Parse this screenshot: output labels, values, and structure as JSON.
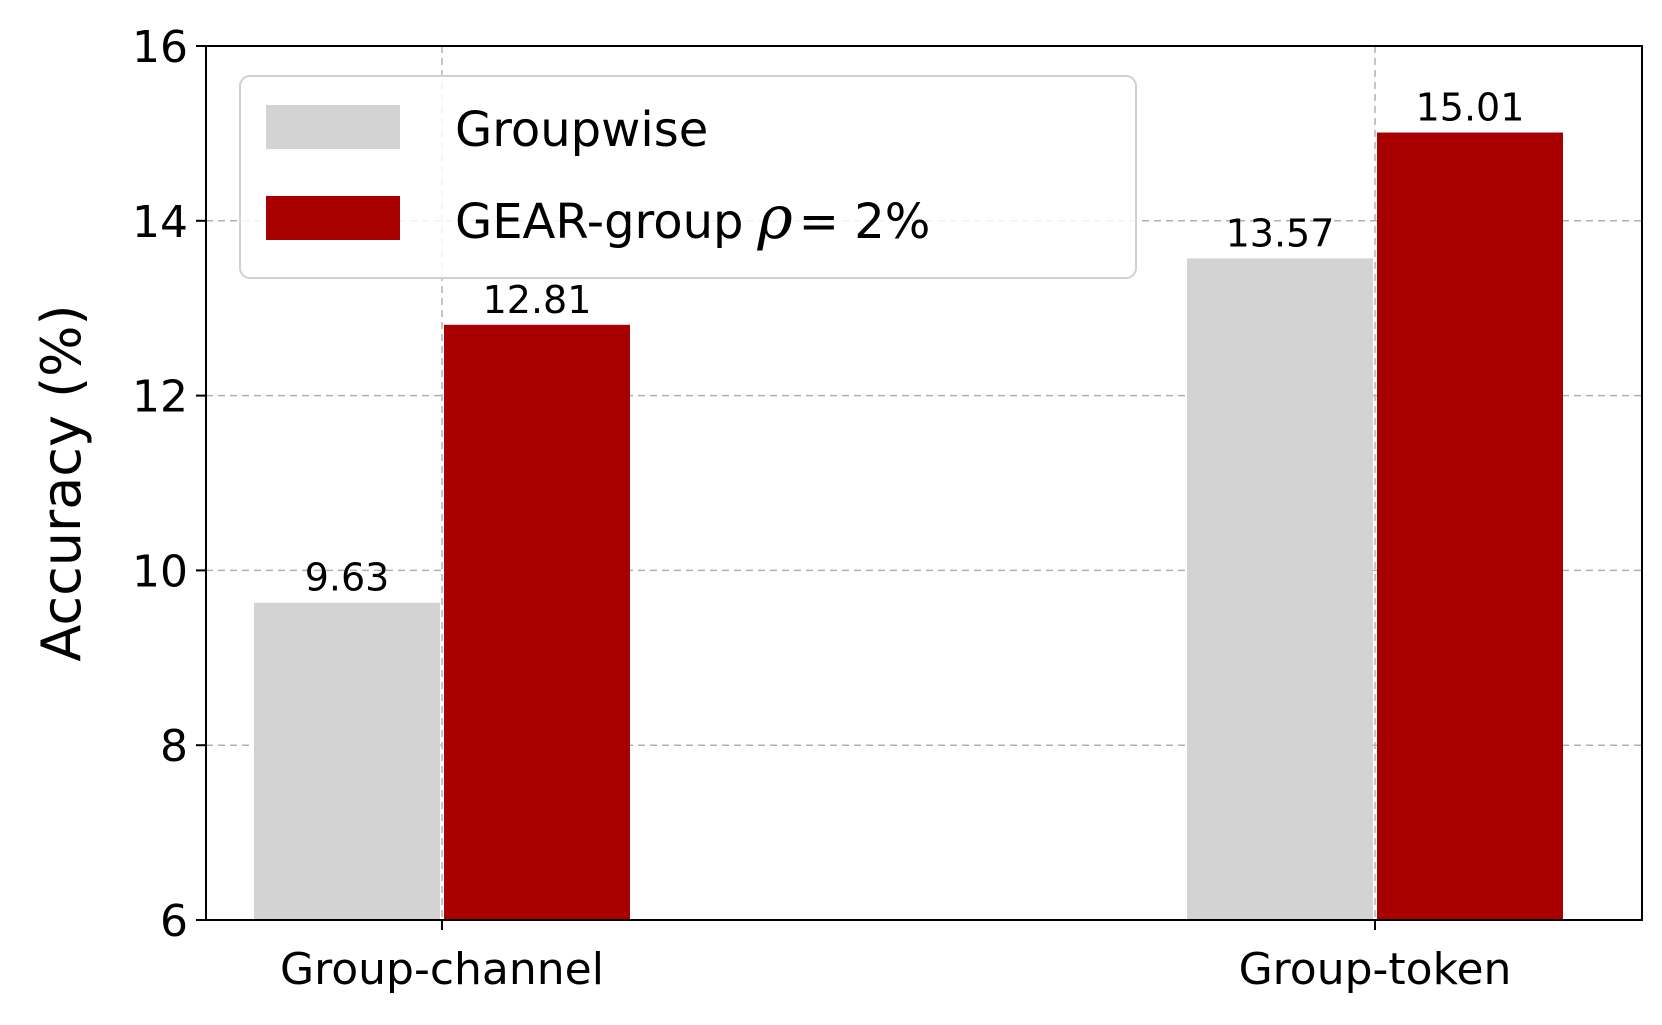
{
  "chart_data": {
    "type": "bar",
    "categories": [
      "Group-channel",
      "Group-token"
    ],
    "series": [
      {
        "name": "Groupwise",
        "values": [
          9.63,
          13.57
        ],
        "color": "#d3d3d3"
      },
      {
        "name": "GEAR-group ρ = 2%",
        "values": [
          12.81,
          15.01
        ],
        "color": "#a80000"
      }
    ],
    "value_labels": [
      [
        "9.63",
        "13.57"
      ],
      [
        "12.81",
        "15.01"
      ]
    ],
    "title": "",
    "xlabel": "",
    "ylabel": "Accuracy (%)",
    "ylim": [
      6,
      16
    ],
    "yticks": [
      "6",
      "8",
      "10",
      "12",
      "14",
      "16"
    ],
    "grid": true,
    "legend_position": "top-left"
  },
  "legend": {
    "groupwise_label": "Groupwise",
    "gear_prefix": "GEAR-group",
    "gear_symbol": "ρ",
    "gear_suffix": "= 2%"
  }
}
